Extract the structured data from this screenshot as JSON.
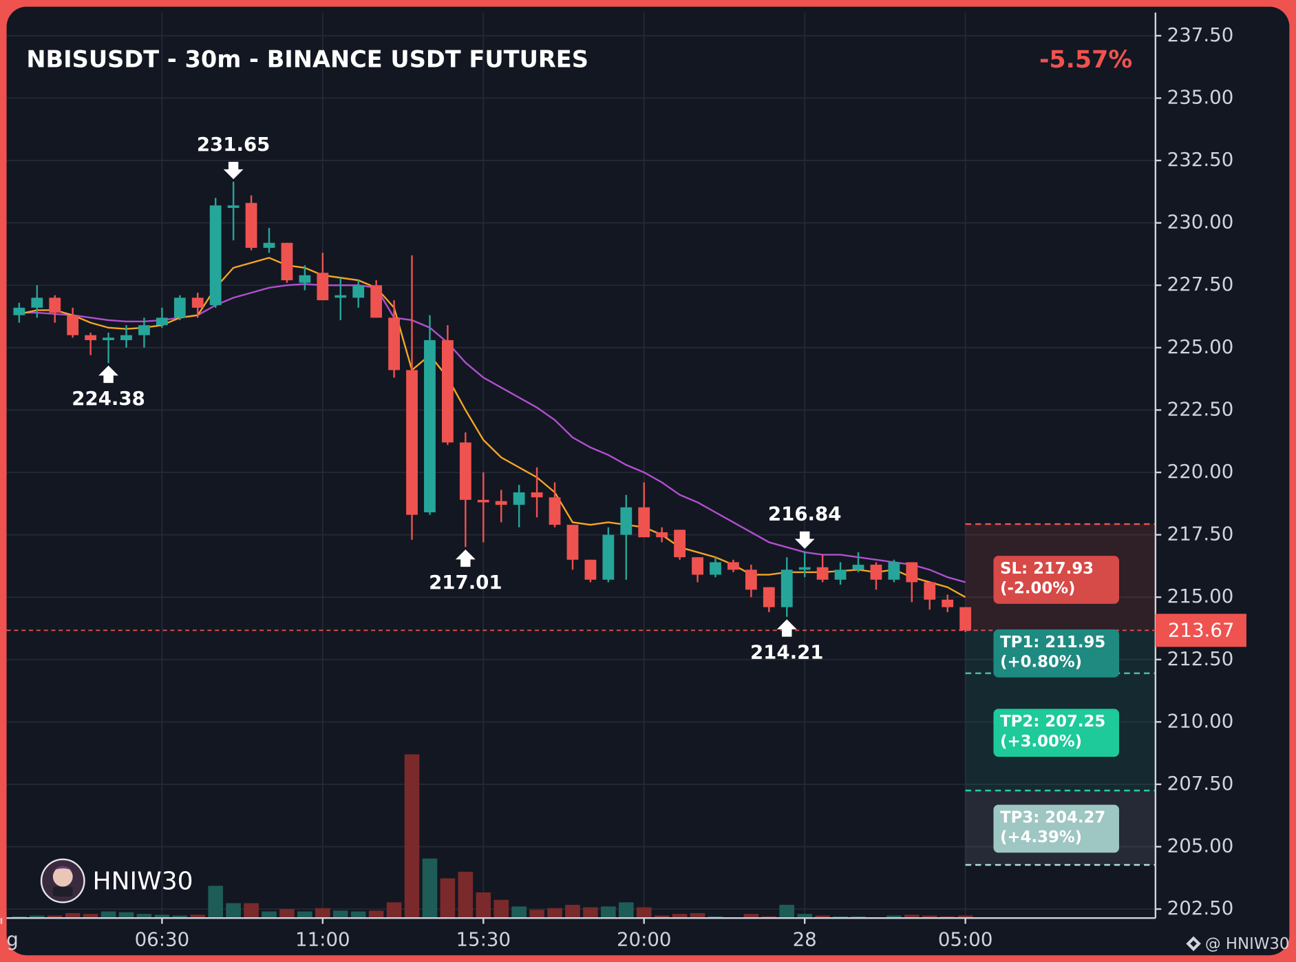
{
  "chart_data": {
    "type": "candlestick",
    "title": "NBISUSDT - 30m - BINANCE USDT FUTURES",
    "change": "-5.57%",
    "ylim": [
      202.14,
      238.43
    ],
    "yticks": [
      {
        "value": 202.5,
        "label": "202.50"
      },
      {
        "value": 205,
        "label": "205.00"
      },
      {
        "value": 207.5,
        "label": "207.50"
      },
      {
        "value": 210,
        "label": "210.00"
      },
      {
        "value": 212.5,
        "label": "212.50"
      },
      {
        "value": 215,
        "label": "215.00"
      },
      {
        "value": 217.5,
        "label": "217.50"
      },
      {
        "value": 220,
        "label": "220.00"
      },
      {
        "value": 222.5,
        "label": "222.50"
      },
      {
        "value": 225,
        "label": "225.00"
      },
      {
        "value": 227.5,
        "label": "227.50"
      },
      {
        "value": 230,
        "label": "230.00"
      },
      {
        "value": 232.5,
        "label": "232.50"
      },
      {
        "value": 235,
        "label": "235.00"
      },
      {
        "value": 237.5,
        "label": "237.50"
      }
    ],
    "xticks": [
      {
        "value": -1,
        "label": "g"
      },
      {
        "value": 8,
        "label": "06:30"
      },
      {
        "value": 17,
        "label": "11:00"
      },
      {
        "value": 26,
        "label": "15:30"
      },
      {
        "value": 35,
        "label": "20:00"
      },
      {
        "value": 44,
        "label": "28"
      },
      {
        "value": 53,
        "label": "05:00"
      }
    ],
    "grid": true,
    "up_color": "#26a69a",
    "down_color": "#ef5350",
    "open": [
      226.3,
      226.6,
      227.0,
      226.3,
      225.5,
      225.3,
      225.3,
      225.5,
      225.9,
      226.2,
      227.0,
      226.7,
      230.6,
      230.8,
      229.0,
      229.2,
      227.6,
      228.0,
      227.0,
      227.0,
      227.5,
      226.2,
      224.1,
      218.4,
      225.3,
      221.2,
      218.9,
      218.85,
      218.7,
      219.2,
      219.0,
      217.9,
      216.5,
      215.7,
      217.5,
      218.6,
      217.6,
      217.7,
      216.6,
      215.9,
      216.4,
      216.1,
      215.4,
      214.6,
      216.1,
      216.2,
      215.7,
      216.1,
      216.3,
      215.7,
      216.4,
      215.6,
      214.9,
      214.6
    ],
    "high": [
      226.8,
      227.5,
      227.1,
      226.6,
      225.6,
      225.6,
      225.9,
      226.2,
      226.6,
      227.1,
      227.2,
      231.0,
      231.65,
      231.1,
      229.8,
      229.2,
      228.3,
      228.8,
      227.8,
      227.7,
      227.7,
      226.9,
      228.7,
      226.3,
      225.9,
      221.6,
      220.0,
      219.3,
      219.5,
      220.2,
      219.6,
      217.9,
      216.5,
      217.8,
      219.1,
      219.6,
      217.8,
      217.7,
      216.6,
      216.6,
      216.5,
      216.3,
      215.4,
      216.6,
      216.84,
      216.7,
      216.4,
      216.8,
      216.4,
      216.5,
      216.4,
      215.6,
      215.1,
      214.6
    ],
    "low": [
      226.0,
      226.2,
      226.0,
      225.4,
      224.7,
      224.38,
      225.0,
      225.0,
      225.8,
      226.1,
      226.2,
      226.6,
      229.3,
      228.9,
      228.8,
      227.6,
      227.3,
      226.9,
      226.1,
      226.6,
      226.2,
      223.8,
      217.3,
      218.3,
      221.1,
      217.01,
      217.2,
      218.0,
      217.8,
      218.2,
      217.8,
      216.1,
      215.6,
      215.6,
      215.7,
      217.4,
      217.2,
      216.5,
      215.6,
      215.8,
      216.0,
      215.0,
      214.4,
      214.21,
      215.8,
      215.6,
      215.5,
      216.0,
      215.3,
      215.6,
      214.8,
      214.5,
      214.4,
      213.6
    ],
    "close": [
      226.6,
      227.0,
      226.4,
      225.5,
      225.3,
      225.4,
      225.5,
      225.9,
      226.2,
      227.0,
      226.6,
      230.7,
      230.7,
      229.0,
      229.2,
      227.7,
      227.9,
      226.9,
      227.1,
      227.5,
      226.2,
      224.1,
      218.3,
      225.3,
      221.2,
      218.9,
      218.8,
      218.7,
      219.2,
      219.0,
      217.9,
      216.5,
      215.7,
      217.5,
      218.6,
      217.4,
      217.4,
      216.6,
      215.9,
      216.4,
      216.1,
      215.3,
      214.6,
      216.1,
      216.2,
      215.7,
      216.1,
      216.3,
      215.7,
      216.4,
      215.6,
      214.9,
      214.6,
      213.67
    ],
    "moving_averages": [
      {
        "color": "#b24fd0",
        "values": [
          226.4,
          226.4,
          226.35,
          226.3,
          226.2,
          226.1,
          226.05,
          226.05,
          226.1,
          226.2,
          226.3,
          226.7,
          227.0,
          227.2,
          227.4,
          227.5,
          227.55,
          227.5,
          227.5,
          227.5,
          227.4,
          226.2,
          226.1,
          225.8,
          225.2,
          224.4,
          223.8,
          223.4,
          223.0,
          222.6,
          222.1,
          221.4,
          221.0,
          220.7,
          220.3,
          220.0,
          219.6,
          219.1,
          218.8,
          218.4,
          218.0,
          217.6,
          217.2,
          217.0,
          216.8,
          216.7,
          216.7,
          216.6,
          216.5,
          216.4,
          216.3,
          216.1,
          215.8,
          215.6
        ]
      },
      {
        "color": "#f5a623",
        "values": [
          226.35,
          226.5,
          226.5,
          226.3,
          226.0,
          225.8,
          225.75,
          225.8,
          225.9,
          226.2,
          226.3,
          227.4,
          228.2,
          228.4,
          228.6,
          228.3,
          228.2,
          227.9,
          227.8,
          227.7,
          227.4,
          226.6,
          224.1,
          224.7,
          223.8,
          222.5,
          221.3,
          220.6,
          220.2,
          219.8,
          219.2,
          218.0,
          217.9,
          218.0,
          217.9,
          217.8,
          217.5,
          217.0,
          216.8,
          216.6,
          216.3,
          215.9,
          215.9,
          216.0,
          216.0,
          216.0,
          216.05,
          216.1,
          216.0,
          216.1,
          215.8,
          215.6,
          215.4,
          215.0
        ]
      }
    ],
    "volume": {
      "lim": [
        0,
        260
      ],
      "up_color": "#1e5c57",
      "down_color": "#7a2a2a",
      "values": [
        2,
        3,
        3,
        6,
        5,
        8,
        7,
        5,
        4,
        3,
        4,
        39,
        18,
        18,
        8,
        11,
        8,
        12,
        9,
        8,
        9,
        19,
        198,
        72,
        48,
        56,
        31,
        22,
        14,
        10,
        12,
        16,
        13,
        14,
        19,
        13,
        3,
        5,
        6,
        2,
        1,
        5,
        2,
        16,
        5,
        3,
        2,
        2,
        1,
        3,
        4,
        3,
        2,
        3
      ]
    },
    "annotations": [
      {
        "index": 12,
        "value": 231.65,
        "position": "above"
      },
      {
        "index": 5,
        "value": 224.38,
        "position": "below"
      },
      {
        "index": 25,
        "value": 217.01,
        "position": "below"
      },
      {
        "index": 44,
        "value": 216.84,
        "position": "above"
      },
      {
        "index": 43,
        "value": 214.21,
        "position": "below"
      }
    ],
    "last_price": {
      "value": 213.67,
      "color": "#ef5350"
    },
    "levels": [
      {
        "value": 217.93,
        "label": "SL: 217.93",
        "change": "(-2.00%)",
        "color": "#d64a47",
        "line_color": "#ef5350",
        "zone_color": "rgba(239,83,80,0.13)"
      },
      {
        "value": 211.95,
        "label": "TP1: 211.95",
        "change": "(+0.80%)",
        "color": "#1f8a80",
        "line_color": "#4fc3b0",
        "zone_color": "rgba(38,166,154,0.13)"
      },
      {
        "value": 207.25,
        "label": "TP2: 207.25",
        "change": "(+3.00%)",
        "color": "#1ec99a",
        "line_color": "#26d0a0",
        "zone_color": "rgba(38,166,154,0.13)"
      },
      {
        "value": 204.27,
        "label": "TP3: 204.27",
        "change": "(+4.39%)",
        "color": "#9ec6c2",
        "line_color": "#b2dfdb",
        "zone_color": "rgba(160,170,190,0.13)"
      }
    ],
    "watermark": "HNIW30",
    "credit": "@ HNIW30"
  }
}
